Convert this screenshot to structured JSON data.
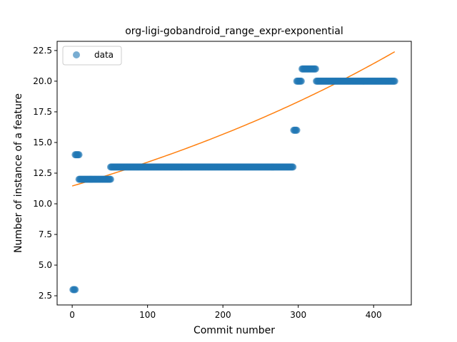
{
  "chart_data": {
    "type": "scatter",
    "title": "org-ligi-gobandroid_range_expr-exponential",
    "xlabel": "Commit number",
    "ylabel": "Number of instance of a feature",
    "xlim": [
      -20,
      450
    ],
    "ylim": [
      1.75,
      23.25
    ],
    "x_ticks": [
      0,
      100,
      200,
      300,
      400
    ],
    "y_ticks": [
      2.5,
      5.0,
      7.5,
      10.0,
      12.5,
      15.0,
      17.5,
      20.0,
      22.5
    ],
    "x_tick_labels": [
      "0",
      "100",
      "200",
      "300",
      "400"
    ],
    "y_tick_labels": [
      "2.5",
      "5.0",
      "7.5",
      "10.0",
      "12.5",
      "15.0",
      "17.5",
      "20.0",
      "22.5"
    ],
    "legend": {
      "position": "upper-left",
      "entries": [
        "data"
      ]
    },
    "colors": {
      "data": "#1f77b4",
      "fit": "#ff7f0e"
    },
    "series": [
      {
        "name": "data",
        "type": "scatter",
        "segments": [
          {
            "x_start": 1,
            "x_end": 4,
            "y": 3
          },
          {
            "x_start": 4,
            "x_end": 9,
            "y": 14
          },
          {
            "x_start": 9,
            "x_end": 51,
            "y": 12
          },
          {
            "x_start": 51,
            "x_end": 293,
            "y": 13
          },
          {
            "x_start": 294,
            "x_end": 298,
            "y": 16
          },
          {
            "x_start": 298,
            "x_end": 304,
            "y": 20
          },
          {
            "x_start": 305,
            "x_end": 323,
            "y": 21
          },
          {
            "x_start": 324,
            "x_end": 428,
            "y": 20
          }
        ]
      },
      {
        "type": "line",
        "fit": "exponential",
        "x_range": [
          0,
          428
        ],
        "y_start": 11.45,
        "y_end": 22.4
      }
    ]
  }
}
